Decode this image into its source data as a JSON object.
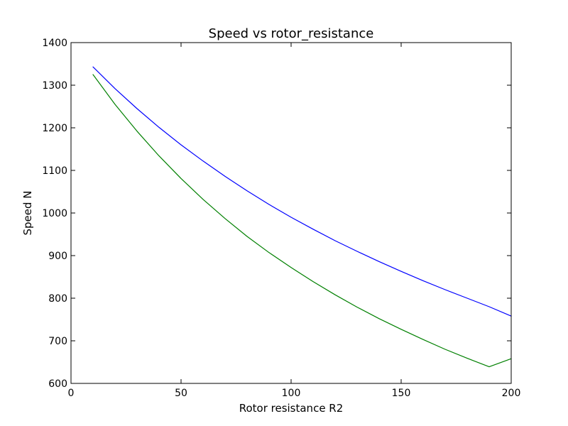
{
  "chart_data": {
    "type": "line",
    "title": "Speed vs rotor_resistance",
    "xlabel": "Rotor resistance R2",
    "ylabel": "Speed N",
    "xlim": [
      0,
      200
    ],
    "ylim": [
      600,
      1400
    ],
    "xticks": [
      0,
      50,
      100,
      150,
      200
    ],
    "yticks": [
      600,
      700,
      800,
      900,
      1000,
      1100,
      1200,
      1300,
      1400
    ],
    "grid": false,
    "series": [
      {
        "color": "#0000ff",
        "x": [
          10,
          20,
          30,
          40,
          50,
          60,
          70,
          80,
          90,
          100,
          110,
          120,
          130,
          140,
          150,
          160,
          170,
          180,
          190,
          200
        ],
        "values": [
          1343,
          1292,
          1245,
          1201,
          1160,
          1122,
          1086,
          1052,
          1020,
          990,
          962,
          935,
          910,
          886,
          863,
          841,
          820,
          800,
          780,
          758
        ]
      },
      {
        "color": "#008000",
        "x": [
          10,
          20,
          30,
          40,
          50,
          60,
          70,
          80,
          90,
          100,
          110,
          120,
          130,
          140,
          150,
          160,
          170,
          180,
          190,
          200
        ],
        "values": [
          1325,
          1255,
          1192,
          1134,
          1081,
          1032,
          987,
          945,
          907,
          872,
          839,
          808,
          779,
          752,
          727,
          703,
          680,
          659,
          639,
          658
        ]
      }
    ]
  }
}
